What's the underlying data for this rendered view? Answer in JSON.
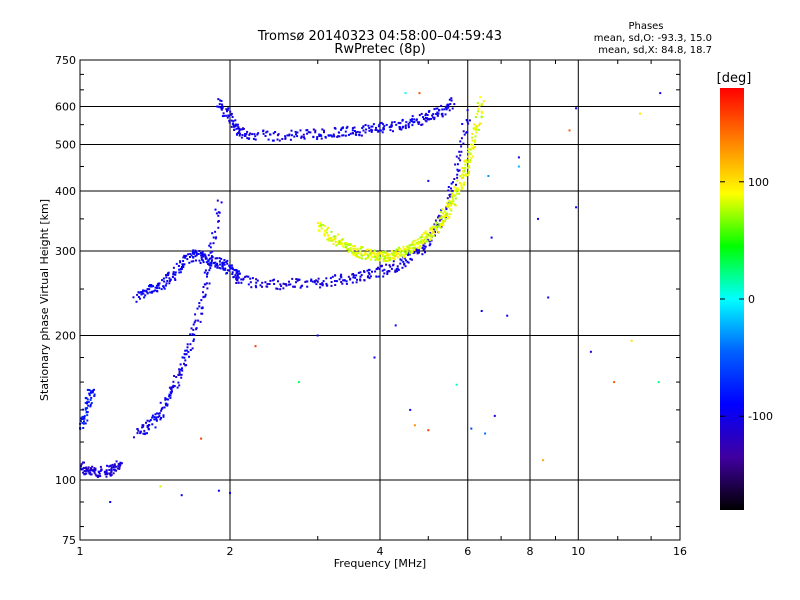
{
  "chart_data": {
    "type": "scatter",
    "title_line1": "Tromsø 20140323 04:58:00–04:59:43",
    "title_line2": "RwPretec (8p)",
    "xlabel": "Frequency [MHz]",
    "ylabel": "Stationary phase Virtual Height [km]",
    "x_scale": "log",
    "y_scale": "log",
    "xlim": [
      1,
      16
    ],
    "ylim": [
      75,
      750
    ],
    "x_ticks": [
      1,
      2,
      4,
      6,
      8,
      10,
      16
    ],
    "x_tick_labels": [
      "1",
      "2",
      "4",
      "6",
      "8",
      "10",
      "16"
    ],
    "y_ticks": [
      75,
      100,
      200,
      300,
      400,
      500,
      600,
      750
    ],
    "y_tick_labels": [
      "75",
      "100",
      "200",
      "300",
      "400",
      "500",
      "600",
      "750"
    ],
    "grid": true,
    "phases_legend": {
      "title": "Phases",
      "line_o": "mean, sd,O: -93.3, 15.0",
      "line_x": "mean, sd,X: 84.8, 18.7"
    },
    "colorbar": {
      "label": "[deg]",
      "min": -180,
      "max": 180,
      "ticks": [
        100,
        0,
        -100
      ],
      "tick_labels": [
        "100",
        "0",
        "-100"
      ],
      "colors": [
        "#ff0000",
        "#ff8000",
        "#ffff00",
        "#00ff00",
        "#00ffff",
        "#0060ff",
        "#0000ff",
        "#4000a0",
        "#000000"
      ]
    },
    "series": [
      {
        "mode": "O",
        "mean_phase": -93.3,
        "traces": [
          {
            "freq": [
              1.0,
              1.02,
              1.05,
              1.08,
              1.12,
              1.15,
              1.18,
              1.2
            ],
            "height": [
              108,
              105,
              104,
              104,
              104,
              105,
              106,
              108
            ],
            "phase": -110
          },
          {
            "freq": [
              1.0,
              1.02,
              1.04,
              1.06
            ],
            "height": [
              128,
              135,
              145,
              155
            ],
            "phase": -80
          },
          {
            "freq": [
              1.3,
              1.35,
              1.4,
              1.45,
              1.5,
              1.55,
              1.6,
              1.65,
              1.7,
              1.75,
              1.8,
              1.85,
              1.9
            ],
            "height": [
              125,
              128,
              132,
              138,
              148,
              158,
              170,
              185,
              205,
              230,
              265,
              310,
              380
            ],
            "phase": -100
          },
          {
            "freq": [
              1.3,
              1.35,
              1.4,
              1.45,
              1.5,
              1.55,
              1.6,
              1.65,
              1.7,
              1.75,
              1.8,
              1.85,
              1.9,
              1.95,
              2.0,
              2.05,
              2.1
            ],
            "height": [
              240,
              245,
              250,
              255,
              262,
              270,
              280,
              290,
              295,
              292,
              288,
              285,
              283,
              280,
              275,
              270,
              265
            ],
            "phase": -95
          },
          {
            "freq": [
              2.05,
              2.2,
              2.4,
              2.6,
              2.8,
              3.0,
              3.2,
              3.4,
              3.6,
              3.8,
              4.0,
              4.2,
              4.4,
              4.6,
              4.8,
              5.0,
              5.2,
              5.4,
              5.6,
              5.8,
              6.0
            ],
            "height": [
              262,
              258,
              256,
              256,
              257,
              258,
              260,
              262,
              264,
              268,
              272,
              276,
              282,
              290,
              300,
              315,
              335,
              365,
              410,
              480,
              580
            ],
            "phase": -105
          },
          {
            "freq": [
              1.9,
              1.95,
              2.0,
              2.05,
              2.1,
              2.2,
              2.4,
              2.6,
              2.8,
              3.0,
              3.2,
              3.4,
              3.6,
              3.8,
              4.0,
              4.2,
              4.4,
              4.6,
              4.8,
              5.0,
              5.2,
              5.4,
              5.6
            ],
            "height": [
              610,
              590,
              560,
              540,
              530,
              525,
              520,
              522,
              524,
              526,
              528,
              531,
              534,
              537,
              541,
              545,
              550,
              556,
              563,
              570,
              580,
              592,
              610
            ],
            "phase": -100
          }
        ]
      },
      {
        "mode": "X",
        "mean_phase": 84.8,
        "traces": [
          {
            "freq": [
              3.0,
              3.1,
              3.2,
              3.3,
              3.4,
              3.5,
              3.6,
              3.7,
              3.8,
              3.9,
              4.0,
              4.1,
              4.2,
              4.3,
              4.4,
              4.5,
              4.6,
              4.7,
              4.8,
              4.9,
              5.0,
              5.1,
              5.2,
              5.3,
              5.4,
              5.5,
              5.6,
              5.7,
              5.8,
              5.9,
              6.0,
              6.1,
              6.2,
              6.3,
              6.4
            ],
            "height": [
              340,
              330,
              322,
              315,
              309,
              304,
              300,
              297,
              295,
              294,
              293,
              293,
              294,
              295,
              297,
              300,
              303,
              307,
              312,
              317,
              323,
              330,
              338,
              347,
              357,
              368,
              381,
              396,
              413,
              433,
              457,
              485,
              520,
              560,
              620
            ],
            "phase": 85
          }
        ]
      },
      {
        "mode": "noise",
        "points": [
          {
            "freq": 1.15,
            "height": 90,
            "phase": -100
          },
          {
            "freq": 1.45,
            "height": 97,
            "phase": 80
          },
          {
            "freq": 1.6,
            "height": 93,
            "phase": -95
          },
          {
            "freq": 1.9,
            "height": 95,
            "phase": -90
          },
          {
            "freq": 2.0,
            "height": 94,
            "phase": -95
          },
          {
            "freq": 1.75,
            "height": 122,
            "phase": 160
          },
          {
            "freq": 2.25,
            "height": 190,
            "phase": 160
          },
          {
            "freq": 2.75,
            "height": 160,
            "phase": 30
          },
          {
            "freq": 3.9,
            "height": 180,
            "phase": -100
          },
          {
            "freq": 4.6,
            "height": 140,
            "phase": -100
          },
          {
            "freq": 4.7,
            "height": 130,
            "phase": 130
          },
          {
            "freq": 5.0,
            "height": 127,
            "phase": 160
          },
          {
            "freq": 5.7,
            "height": 158,
            "phase": 10
          },
          {
            "freq": 6.1,
            "height": 128,
            "phase": -60
          },
          {
            "freq": 6.5,
            "height": 125,
            "phase": -40
          },
          {
            "freq": 6.8,
            "height": 136,
            "phase": -100
          },
          {
            "freq": 7.2,
            "height": 220,
            "phase": -100
          },
          {
            "freq": 7.6,
            "height": 470,
            "phase": -100
          },
          {
            "freq": 7.6,
            "height": 450,
            "phase": -20
          },
          {
            "freq": 8.3,
            "height": 350,
            "phase": -100
          },
          {
            "freq": 8.5,
            "height": 110,
            "phase": 120
          },
          {
            "freq": 8.7,
            "height": 240,
            "phase": -100
          },
          {
            "freq": 9.6,
            "height": 535,
            "phase": 150
          },
          {
            "freq": 9.9,
            "height": 370,
            "phase": -100
          },
          {
            "freq": 10.6,
            "height": 185,
            "phase": -100
          },
          {
            "freq": 11.8,
            "height": 160,
            "phase": 150
          },
          {
            "freq": 12.8,
            "height": 195,
            "phase": 100
          },
          {
            "freq": 13.3,
            "height": 580,
            "phase": 100
          },
          {
            "freq": 14.5,
            "height": 160,
            "phase": 20
          },
          {
            "freq": 14.6,
            "height": 640,
            "phase": -100
          },
          {
            "freq": 9.9,
            "height": 595,
            "phase": -100
          },
          {
            "freq": 4.5,
            "height": 640,
            "phase": 0
          },
          {
            "freq": 4.8,
            "height": 640,
            "phase": 150
          },
          {
            "freq": 6.6,
            "height": 430,
            "phase": -30
          },
          {
            "freq": 6.7,
            "height": 320,
            "phase": -100
          },
          {
            "freq": 5.0,
            "height": 420,
            "phase": -100
          },
          {
            "freq": 3.0,
            "height": 200,
            "phase": -100
          },
          {
            "freq": 4.3,
            "height": 210,
            "phase": -100
          },
          {
            "freq": 6.4,
            "height": 225,
            "phase": -100
          }
        ]
      }
    ]
  }
}
